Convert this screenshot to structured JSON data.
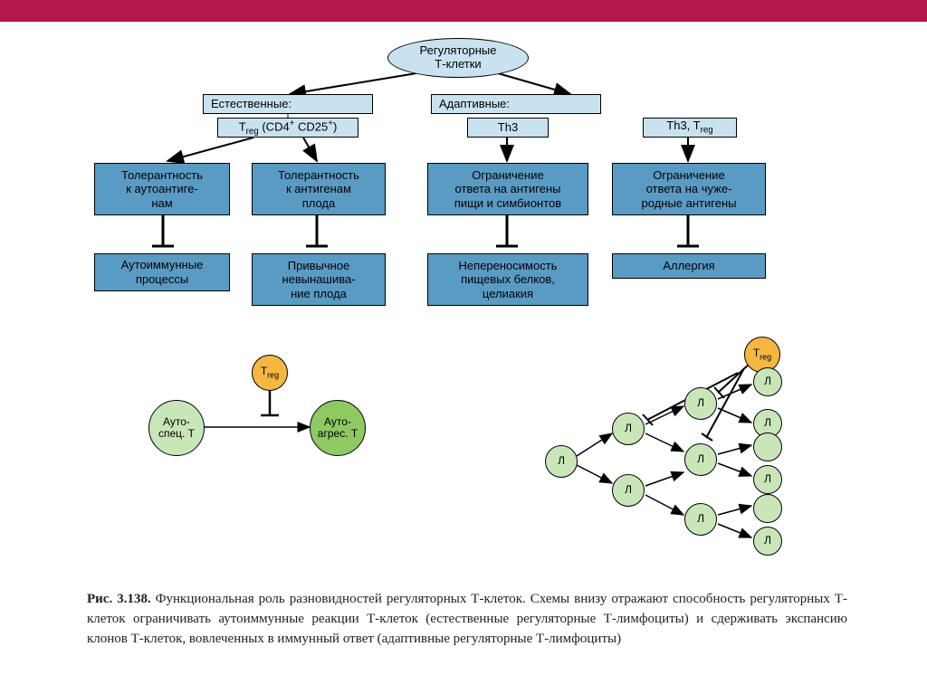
{
  "type": "flowchart",
  "colors": {
    "top_bar": "#b4174a",
    "ellipse_fill": "#c9e2f0",
    "header_box_fill": "#c9e2f0",
    "sub_box_fill": "#c9e2f0",
    "blue_box_fill": "#5a9bc4",
    "orange_fill": "#f5b742",
    "green_fill": "#8fc962",
    "light_green_fill": "#c9e6b8",
    "text": "#000000",
    "border": "#000000"
  },
  "fonts": {
    "diagram_fontsize": 13,
    "caption_fontsize": 15
  },
  "root": {
    "line1": "Регуляторные",
    "line2": "Т-клетки"
  },
  "branches": {
    "natural": {
      "header": "Естественные:",
      "sub": "T<sub>reg</sub> (CD4<sup>+</sup> CD25<sup>+</sup>)"
    },
    "adaptive": {
      "header": "Адаптивные:",
      "sub_left": "Th3",
      "sub_right": "Th3, T<sub>reg</sub>"
    }
  },
  "mid_boxes": {
    "b1": "Толерантность<br>к аутоантиге-<br>нам",
    "b2": "Толерантность<br>к антигенам<br>плода",
    "b3": "Ограничение<br>ответа на антигены<br>пищи и симбионтов",
    "b4": "Ограничение<br>ответа на чуже-<br>родные антигены"
  },
  "bottom_boxes": {
    "o1": "Аутоиммунные<br>процессы",
    "o2": "Привычное<br>невынашива-<br>ние плода",
    "o3": "Непереносимость<br>пищевых белков,<br>целиакия",
    "o4": "Аллергия"
  },
  "mini1": {
    "treg": "T<sub>reg</sub>",
    "left": "Ауто-<br>спец. Т",
    "right": "Ауто-<br>агрес. Т"
  },
  "mini2": {
    "treg": "T<sub>reg</sub>",
    "node_label": "Л"
  },
  "caption": {
    "fig_num": "Рис. 3.138.",
    "text": " Функциональная роль разновидностей регуляторных Т-клеток. Схемы внизу отражают способность регуляторных Т-клеток ограничивать аутоиммунные реакции Т-клеток (естественные регуляторные Т-лимфоциты) и сдерживать экспансию клонов Т-клеток, вовлеченных в иммунный ответ (адаптивные регуляторные Т-лимфоциты)"
  }
}
